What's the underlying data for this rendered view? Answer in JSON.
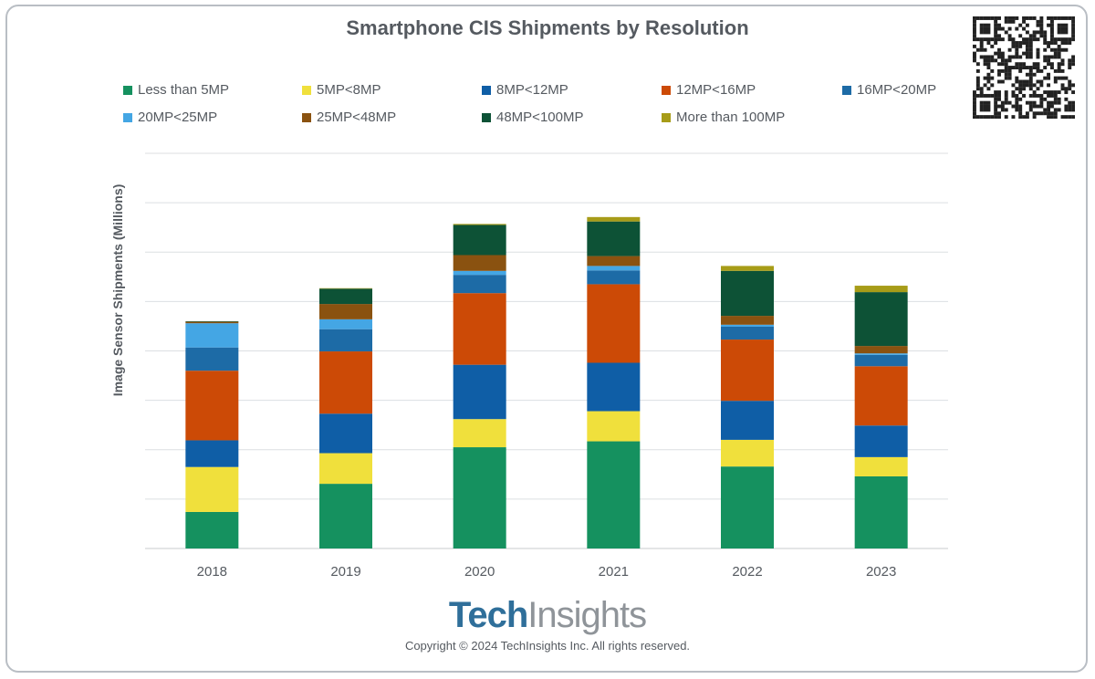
{
  "chart_data": {
    "type": "bar",
    "stacked": true,
    "title": "Smartphone CIS Shipments by Resolution",
    "xlabel": "",
    "ylabel": "Image Sensor Shipments (Millions)",
    "ylim": [
      0,
      800
    ],
    "grid": true,
    "legend_position": "top",
    "categories": [
      "2018",
      "2019",
      "2020",
      "2021",
      "2022",
      "2023"
    ],
    "series": [
      {
        "name": "Less than 5MP",
        "color": "#15915f",
        "values": [
          74,
          131,
          205,
          217,
          166,
          146
        ]
      },
      {
        "name": "5MP<8MP",
        "color": "#f0e03c",
        "values": [
          91,
          62,
          57,
          61,
          54,
          39
        ]
      },
      {
        "name": "8MP<12MP",
        "color": "#0f5ea6",
        "values": [
          54,
          80,
          110,
          98,
          79,
          64
        ]
      },
      {
        "name": "12MP<16MP",
        "color": "#cc4a06",
        "values": [
          141,
          126,
          145,
          159,
          124,
          120
        ]
      },
      {
        "name": "16MP<20MP",
        "color": "#1d6ba6",
        "values": [
          47,
          45,
          37,
          28,
          26,
          23
        ]
      },
      {
        "name": "20MP<25MP",
        "color": "#44a6e4",
        "values": [
          49,
          20,
          8,
          9,
          4,
          3
        ]
      },
      {
        "name": "25MP<48MP",
        "color": "#8a5210",
        "values": [
          3,
          31,
          32,
          20,
          18,
          15
        ]
      },
      {
        "name": "48MP<100MP",
        "color": "#0d5236",
        "values": [
          1,
          31,
          61,
          70,
          91,
          109
        ]
      },
      {
        "name": "More than 100MP",
        "color": "#a79c18",
        "values": [
          0,
          1,
          2,
          9,
          10,
          13
        ]
      }
    ]
  },
  "branding": {
    "logo_part1": "Tech",
    "logo_part2": "Insights",
    "copyright": "Copyright © 2024 TechInsights Inc.  All rights reserved."
  }
}
